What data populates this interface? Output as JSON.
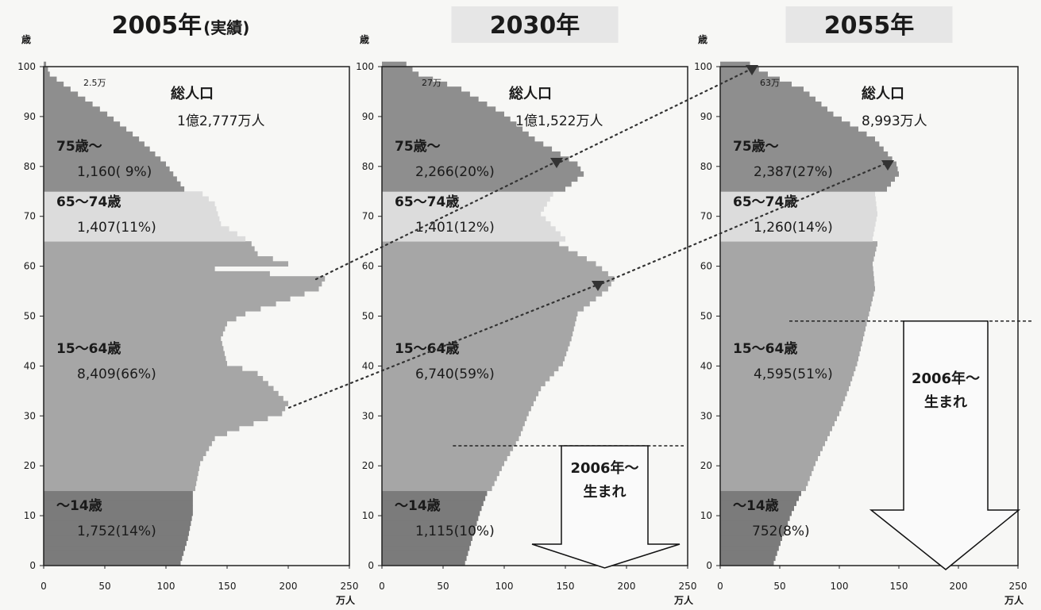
{
  "chart_data": [
    {
      "type": "bar",
      "title": "2005年",
      "title_suffix": "(実績)",
      "ylabel": "歳",
      "xlabel": "万人",
      "x_ticks": [
        "0",
        "50",
        "100",
        "150",
        "200",
        "250"
      ],
      "y_ticks": [
        "0",
        "10",
        "20",
        "30",
        "40",
        "50",
        "60",
        "70",
        "80",
        "90",
        "100"
      ],
      "xlim": [
        0,
        250
      ],
      "ylim": [
        0,
        100
      ],
      "top_label": "2.5万",
      "total_label": "総人口",
      "total_value": "1億2,777万人",
      "groups": [
        {
          "name": "75歳～",
          "value": "1,160( 9%)",
          "range": [
            75,
            100
          ]
        },
        {
          "name": "65～74歳",
          "value": "1,407(11%)",
          "range": [
            65,
            74
          ]
        },
        {
          "name": "15～64歳",
          "value": "8,409(66%)",
          "range": [
            15,
            64
          ]
        },
        {
          "name": "～14歳",
          "value": "1,752(14%)",
          "range": [
            0,
            14
          ]
        }
      ],
      "profile": [
        [
          0,
          112
        ],
        [
          5,
          118
        ],
        [
          10,
          122
        ],
        [
          14,
          122
        ],
        [
          15,
          124
        ],
        [
          20,
          128
        ],
        [
          25,
          140
        ],
        [
          27,
          160
        ],
        [
          30,
          195
        ],
        [
          32,
          200
        ],
        [
          35,
          188
        ],
        [
          38,
          175
        ],
        [
          40,
          150
        ],
        [
          42,
          148
        ],
        [
          45,
          145
        ],
        [
          48,
          150
        ],
        [
          50,
          165
        ],
        [
          52,
          190
        ],
        [
          55,
          225
        ],
        [
          57,
          230
        ],
        [
          59,
          140
        ],
        [
          60,
          200
        ],
        [
          62,
          175
        ],
        [
          64,
          170
        ],
        [
          65,
          165
        ],
        [
          68,
          145
        ],
        [
          72,
          140
        ],
        [
          74,
          130
        ],
        [
          75,
          115
        ],
        [
          80,
          100
        ],
        [
          85,
          78
        ],
        [
          90,
          52
        ],
        [
          95,
          22
        ],
        [
          98,
          5
        ],
        [
          100,
          2
        ]
      ],
      "colors": {
        "old75": "#8e8e8e",
        "old65": "#dcdcdc",
        "work": "#a6a6a6",
        "child": "#7b7b7b"
      }
    },
    {
      "type": "bar",
      "title": "2030年",
      "ylabel": "歳",
      "xlabel": "万人",
      "x_ticks": [
        "0",
        "50",
        "100",
        "150",
        "200",
        "250"
      ],
      "y_ticks": [
        "0",
        "10",
        "20",
        "30",
        "40",
        "50",
        "60",
        "70",
        "80",
        "90",
        "100"
      ],
      "xlim": [
        0,
        250
      ],
      "ylim": [
        0,
        100
      ],
      "top_label": "27万",
      "total_label": "総人口",
      "total_value": "1億1,522万人",
      "groups": [
        {
          "name": "75歳～",
          "value": "2,266(20%)",
          "range": [
            75,
            100
          ]
        },
        {
          "name": "65～74歳",
          "value": "1,401(12%)",
          "range": [
            65,
            74
          ]
        },
        {
          "name": "15～64歳",
          "value": "6,740(59%)",
          "range": [
            15,
            64
          ]
        },
        {
          "name": "～14歳",
          "value": "1,115(10%)",
          "range": [
            0,
            14
          ]
        }
      ],
      "profile": [
        [
          0,
          68
        ],
        [
          5,
          74
        ],
        [
          10,
          80
        ],
        [
          14,
          86
        ],
        [
          15,
          90
        ],
        [
          20,
          100
        ],
        [
          25,
          112
        ],
        [
          30,
          120
        ],
        [
          35,
          130
        ],
        [
          40,
          148
        ],
        [
          45,
          155
        ],
        [
          50,
          160
        ],
        [
          55,
          185
        ],
        [
          57,
          190
        ],
        [
          60,
          175
        ],
        [
          64,
          145
        ],
        [
          65,
          150
        ],
        [
          70,
          130
        ],
        [
          74,
          140
        ],
        [
          75,
          150
        ],
        [
          78,
          165
        ],
        [
          80,
          160
        ],
        [
          85,
          125
        ],
        [
          90,
          100
        ],
        [
          95,
          65
        ],
        [
          98,
          30
        ],
        [
          100,
          20
        ]
      ],
      "arrow_label": [
        "2006年～",
        "生まれ"
      ],
      "dashed_at_age": 24,
      "colors": {
        "old75": "#8e8e8e",
        "old65": "#dcdcdc",
        "work": "#a6a6a6",
        "child": "#7b7b7b"
      }
    },
    {
      "type": "bar",
      "title": "2055年",
      "ylabel": "歳",
      "xlabel": "万人",
      "x_ticks": [
        "0",
        "50",
        "100",
        "150",
        "200",
        "250"
      ],
      "y_ticks": [
        "0",
        "10",
        "20",
        "30",
        "40",
        "50",
        "60",
        "70",
        "80",
        "90",
        "100"
      ],
      "xlim": [
        0,
        250
      ],
      "ylim": [
        0,
        100
      ],
      "top_label": "63万",
      "total_label": "総人口",
      "total_value": "8,993万人",
      "groups": [
        {
          "name": "75歳～",
          "value": "2,387(27%)",
          "range": [
            75,
            100
          ]
        },
        {
          "name": "65～74歳",
          "value": "1,260(14%)",
          "range": [
            65,
            74
          ]
        },
        {
          "name": "15～64歳",
          "value": "4,595(51%)",
          "range": [
            15,
            64
          ]
        },
        {
          "name": "～14歳",
          "value": "752(8%)",
          "range": [
            0,
            14
          ]
        }
      ],
      "profile": [
        [
          0,
          45
        ],
        [
          5,
          52
        ],
        [
          10,
          60
        ],
        [
          14,
          68
        ],
        [
          15,
          72
        ],
        [
          20,
          80
        ],
        [
          25,
          90
        ],
        [
          30,
          100
        ],
        [
          35,
          108
        ],
        [
          40,
          115
        ],
        [
          45,
          120
        ],
        [
          50,
          125
        ],
        [
          55,
          130
        ],
        [
          60,
          128
        ],
        [
          64,
          132
        ],
        [
          65,
          128
        ],
        [
          70,
          132
        ],
        [
          74,
          130
        ],
        [
          75,
          140
        ],
        [
          78,
          150
        ],
        [
          80,
          148
        ],
        [
          85,
          130
        ],
        [
          90,
          95
        ],
        [
          95,
          70
        ],
        [
          98,
          40
        ],
        [
          100,
          25
        ]
      ],
      "arrow_label": [
        "2006年～",
        "生まれ"
      ],
      "dashed_at_age": 49,
      "colors": {
        "old75": "#8e8e8e",
        "old65": "#dcdcdc",
        "work": "#a6a6a6",
        "child": "#7b7b7b"
      }
    }
  ]
}
